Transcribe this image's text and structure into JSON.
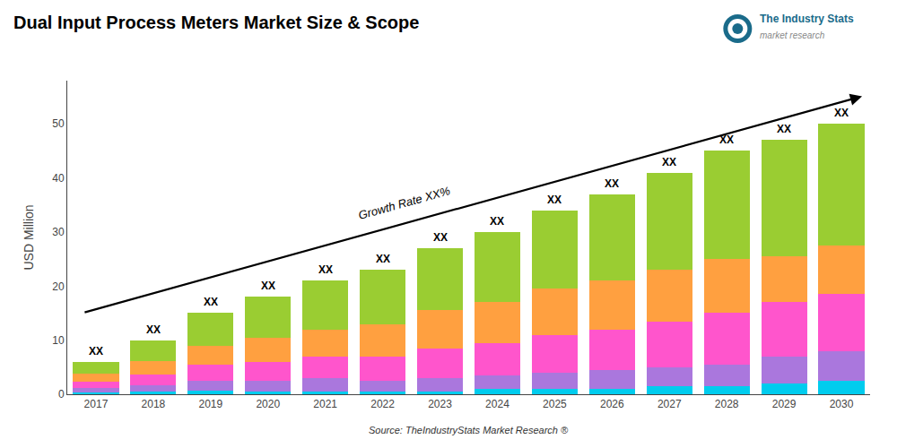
{
  "chart_data": {
    "type": "bar",
    "title": "Dual Input Process Meters Market Size & Scope",
    "ylabel": "USD Million",
    "source": "Source: TheIndustryStats Market Research ®",
    "logo": [
      "The Industry Stats",
      "market research"
    ],
    "stacked": true,
    "grid": false,
    "categories": [
      "2017",
      "2018",
      "2019",
      "2020",
      "2021",
      "2022",
      "2023",
      "2024",
      "2025",
      "2026",
      "2027",
      "2028",
      "2029",
      "2030"
    ],
    "series": [
      {
        "color": "#00ccee",
        "values": [
          0.4,
          0.5,
          0.7,
          0.5,
          0.5,
          0.5,
          0.5,
          1.0,
          1.0,
          1.0,
          1.5,
          1.5,
          2.0,
          2.5
        ]
      },
      {
        "color": "#aa77dd",
        "values": [
          0.7,
          1.2,
          1.8,
          2.0,
          2.5,
          2.0,
          2.5,
          2.5,
          3.0,
          3.5,
          3.5,
          4.0,
          5.0,
          5.5
        ]
      },
      {
        "color": "#ff55cc",
        "values": [
          1.2,
          2.0,
          3.0,
          3.5,
          4.0,
          4.5,
          5.5,
          6.0,
          7.0,
          7.5,
          8.5,
          9.5,
          10.0,
          10.5
        ]
      },
      {
        "color": "#ffa040",
        "values": [
          1.5,
          2.5,
          3.5,
          4.5,
          5.0,
          6.0,
          7.0,
          7.5,
          8.5,
          9.0,
          9.5,
          10.0,
          8.5,
          9.0
        ]
      },
      {
        "color": "#9acd32",
        "values": [
          2.2,
          3.8,
          6.0,
          7.5,
          9.0,
          10.0,
          11.5,
          13.0,
          14.5,
          16.0,
          18.0,
          20.0,
          21.5,
          22.5
        ]
      }
    ],
    "ylim": [
      0,
      58
    ],
    "yticks": [
      0,
      10,
      20,
      30,
      40,
      50
    ],
    "annotations": [
      {
        "text": "Growth Rate XX%"
      },
      {
        "text": "XX",
        "category": "2017"
      },
      {
        "text": "XX",
        "category": "2018"
      },
      {
        "text": "XX",
        "category": "2019"
      },
      {
        "text": "XX",
        "category": "2020"
      },
      {
        "text": "XX",
        "category": "2021"
      },
      {
        "text": "XX",
        "category": "2022"
      },
      {
        "text": "XX",
        "category": "2023"
      },
      {
        "text": "XX",
        "category": "2024"
      },
      {
        "text": "XX",
        "category": "2025"
      },
      {
        "text": "XX",
        "category": "2026"
      },
      {
        "text": "XX",
        "category": "2027"
      },
      {
        "text": "XX",
        "category": "2028"
      },
      {
        "text": "XX",
        "category": "2029"
      },
      {
        "text": "XX",
        "category": "2030"
      }
    ]
  }
}
